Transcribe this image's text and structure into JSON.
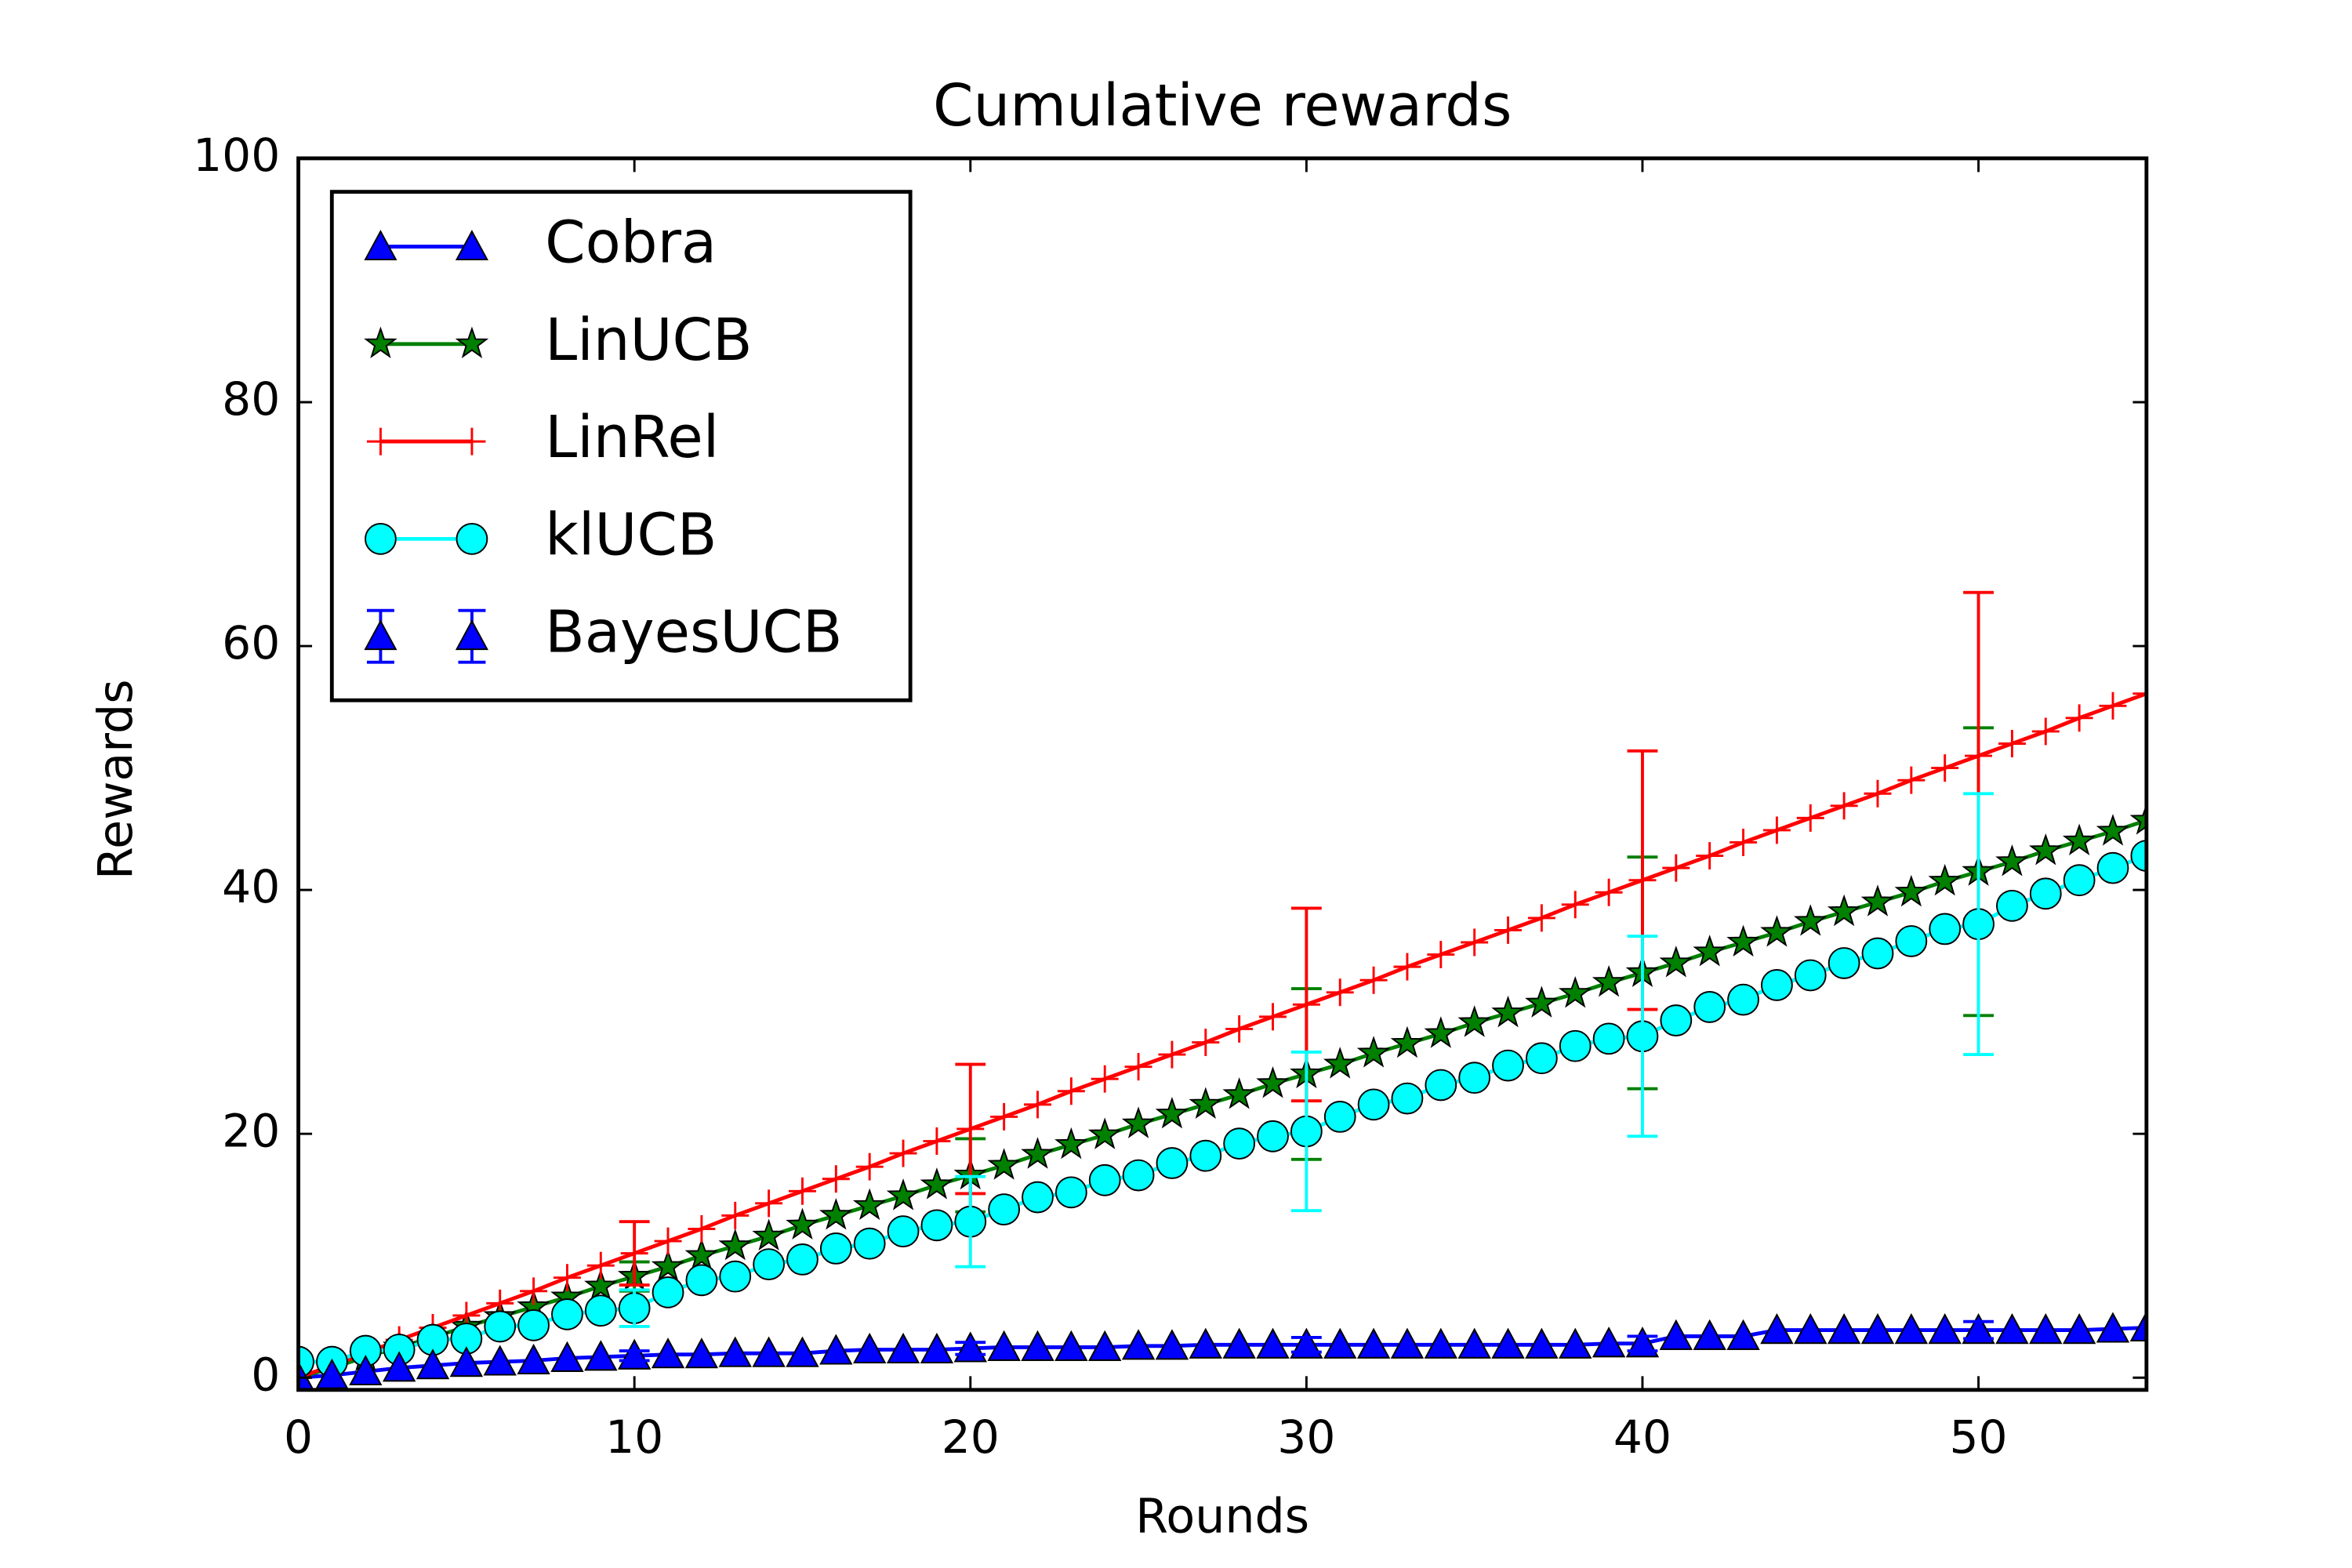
{
  "chart_data": {
    "type": "line",
    "title": "Cumulative rewards",
    "x_label": "Rounds",
    "y_label": "Rewards",
    "x": [
      0,
      1,
      2,
      3,
      4,
      5,
      6,
      7,
      8,
      9,
      10,
      11,
      12,
      13,
      14,
      15,
      16,
      17,
      18,
      19,
      20,
      21,
      22,
      23,
      24,
      25,
      26,
      27,
      28,
      29,
      30,
      31,
      32,
      33,
      34,
      35,
      36,
      37,
      38,
      39,
      40,
      41,
      42,
      43,
      44,
      45,
      46,
      47,
      48,
      49,
      50,
      51,
      52,
      53,
      54,
      55
    ],
    "xlim": [
      0,
      55
    ],
    "xticks": [
      0,
      10,
      20,
      30,
      40,
      50
    ],
    "ylim": [
      -1,
      100
    ],
    "yticks": [
      0,
      20,
      40,
      60,
      80,
      100
    ],
    "legend": "upper left",
    "series": [
      {
        "name": "Cobra",
        "color": "#0000ff",
        "marker": "triangle",
        "line": true,
        "values": [
          0,
          0.2,
          0.5,
          0.8,
          1.0,
          1.2,
          1.3,
          1.4,
          1.6,
          1.7,
          1.8,
          1.9,
          1.9,
          2.0,
          2.0,
          2.0,
          2.2,
          2.3,
          2.3,
          2.3,
          2.4,
          2.5,
          2.5,
          2.5,
          2.5,
          2.6,
          2.6,
          2.7,
          2.7,
          2.7,
          2.7,
          2.7,
          2.7,
          2.7,
          2.7,
          2.7,
          2.7,
          2.7,
          2.7,
          2.8,
          2.8,
          3.4,
          3.4,
          3.4,
          3.9,
          3.9,
          3.9,
          3.9,
          3.9,
          3.9,
          3.9,
          3.9,
          3.9,
          3.9,
          4.0,
          4.1
        ]
      },
      {
        "name": "LinUCB",
        "color": "#008000",
        "marker": "star",
        "line": true,
        "values": [
          0,
          0.8,
          1.7,
          2.5,
          3.3,
          4.2,
          5.0,
          5.8,
          6.6,
          7.5,
          8.3,
          9.1,
          10.0,
          10.8,
          11.6,
          12.5,
          13.3,
          14.1,
          14.9,
          15.8,
          16.6,
          17.4,
          18.3,
          19.1,
          19.9,
          20.8,
          21.6,
          22.4,
          23.2,
          24.1,
          24.9,
          25.7,
          26.6,
          27.4,
          28.2,
          29.1,
          29.9,
          30.7,
          31.5,
          32.4,
          33.2,
          34.0,
          34.9,
          35.7,
          36.5,
          37.4,
          38.2,
          39.0,
          39.8,
          40.7,
          41.5,
          42.3,
          43.2,
          44.0,
          44.8,
          45.7
        ],
        "error_x": [
          10,
          20,
          30,
          40,
          50
        ],
        "errors": [
          1.2,
          3,
          7,
          9.5,
          11.8
        ]
      },
      {
        "name": "LinRel",
        "color": "#ff0000",
        "marker": "plus",
        "line": true,
        "values": [
          0,
          1.0,
          2.0,
          3.1,
          4.1,
          5.1,
          6.1,
          7.1,
          8.2,
          9.2,
          10.2,
          11.2,
          12.2,
          13.3,
          14.3,
          15.3,
          16.3,
          17.3,
          18.4,
          19.4,
          20.4,
          21.4,
          22.4,
          23.5,
          24.5,
          25.5,
          26.5,
          27.5,
          28.6,
          29.6,
          30.6,
          31.6,
          32.6,
          33.7,
          34.7,
          35.7,
          36.7,
          37.7,
          38.8,
          39.8,
          40.8,
          41.8,
          42.8,
          43.9,
          44.9,
          45.9,
          46.9,
          47.9,
          49.0,
          50.0,
          51.0,
          52.0,
          53.0,
          54.1,
          55.1,
          56.1
        ],
        "error_x": [
          10,
          20,
          30,
          40,
          50
        ],
        "errors": [
          2.6,
          5.3,
          7.9,
          10.6,
          13.4
        ]
      },
      {
        "name": "klUCB",
        "color": "#00ffff",
        "marker": "circle",
        "line": true,
        "values": [
          1.3,
          1.3,
          2.2,
          2.3,
          3.1,
          3.2,
          4.2,
          4.3,
          5.2,
          5.5,
          5.7,
          7.0,
          8.0,
          8.3,
          9.3,
          9.7,
          10.6,
          11.0,
          12.0,
          12.5,
          12.8,
          13.8,
          14.8,
          15.2,
          16.2,
          16.6,
          17.6,
          18.2,
          19.2,
          19.8,
          20.2,
          21.4,
          22.4,
          22.9,
          24.0,
          24.6,
          25.6,
          26.2,
          27.2,
          27.8,
          28.0,
          29.3,
          30.4,
          31.0,
          32.2,
          33.0,
          34.0,
          34.8,
          35.8,
          36.8,
          37.2,
          38.7,
          39.7,
          40.8,
          41.8,
          42.8
        ],
        "error_x": [
          10,
          20,
          30,
          40,
          50
        ],
        "errors": [
          1.5,
          3.7,
          6.5,
          8.2,
          10.7
        ]
      },
      {
        "name": "BayesUCB",
        "color": "#0000ff",
        "marker": "triangle",
        "line": false,
        "values": [
          0,
          0.2,
          0.5,
          0.8,
          1.0,
          1.2,
          1.3,
          1.4,
          1.6,
          1.7,
          1.8,
          1.9,
          1.9,
          2.0,
          2.0,
          2.0,
          2.2,
          2.3,
          2.3,
          2.3,
          2.4,
          2.5,
          2.5,
          2.5,
          2.5,
          2.6,
          2.6,
          2.7,
          2.7,
          2.7,
          2.7,
          2.7,
          2.7,
          2.7,
          2.7,
          2.7,
          2.7,
          2.7,
          2.7,
          2.8,
          2.8,
          3.4,
          3.4,
          3.4,
          3.9,
          3.9,
          3.9,
          3.9,
          3.9,
          3.9,
          3.9,
          3.9,
          3.9,
          3.9,
          4.0,
          4.1
        ],
        "error_x": [
          10,
          20,
          30,
          40,
          50
        ],
        "errors": [
          0.4,
          0.5,
          0.6,
          0.6,
          0.7
        ]
      }
    ]
  }
}
